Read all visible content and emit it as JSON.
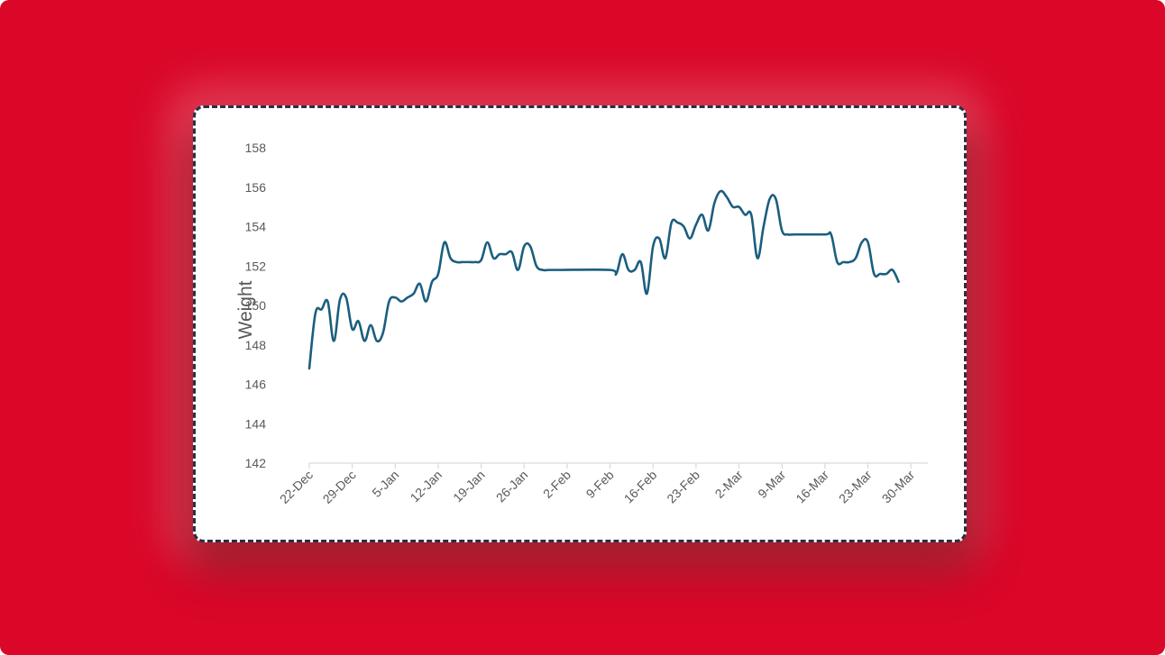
{
  "colors": {
    "background": "#DA0729",
    "card": "#FFFFFF",
    "card_border": "#2A2F44",
    "line": "#1B5E7E",
    "axis": "#D9D9D9",
    "text": "#595959"
  },
  "chart_data": {
    "type": "line",
    "title": "",
    "xlabel": "",
    "ylabel": "Weight",
    "ylim": [
      142,
      158
    ],
    "y_ticks": [
      "142",
      "144",
      "146",
      "148",
      "150",
      "152",
      "154",
      "156",
      "158"
    ],
    "xlim": [
      "2023-12-22",
      "2024-03-30"
    ],
    "x_ticks": [
      "22-Dec",
      "29-Dec",
      "5-Jan",
      "12-Jan",
      "19-Jan",
      "26-Jan",
      "2-Feb",
      "9-Feb",
      "16-Feb",
      "23-Feb",
      "2-Mar",
      "9-Mar",
      "16-Mar",
      "23-Mar",
      "30-Mar"
    ],
    "grid": false,
    "legend": "none",
    "series": [
      {
        "color": "#1B5E7E",
        "x": [
          "2023-12-22",
          "2023-12-23",
          "2023-12-24",
          "2023-12-25",
          "2023-12-26",
          "2023-12-27",
          "2023-12-28",
          "2023-12-29",
          "2023-12-30",
          "2023-12-31",
          "2024-01-01",
          "2024-01-02",
          "2024-01-03",
          "2024-01-04",
          "2024-01-05",
          "2024-01-06",
          "2024-01-07",
          "2024-01-08",
          "2024-01-09",
          "2024-01-10",
          "2024-01-11",
          "2024-01-12",
          "2024-01-13",
          "2024-01-14",
          "2024-01-15",
          "2024-01-16",
          "2024-01-17",
          "2024-01-18",
          "2024-01-19",
          "2024-01-20",
          "2024-01-21",
          "2024-01-22",
          "2024-01-23",
          "2024-01-24",
          "2024-01-25",
          "2024-01-26",
          "2024-01-27",
          "2024-01-28",
          "2024-01-29",
          "2024-01-30",
          "2024-01-31",
          "2024-02-01",
          "2024-02-09",
          "2024-02-10",
          "2024-02-11",
          "2024-02-12",
          "2024-02-13",
          "2024-02-14",
          "2024-02-15",
          "2024-02-16",
          "2024-02-17",
          "2024-02-18",
          "2024-02-19",
          "2024-02-20",
          "2024-02-21",
          "2024-02-22",
          "2024-02-23",
          "2024-02-24",
          "2024-02-25",
          "2024-02-26",
          "2024-02-27",
          "2024-02-28",
          "2024-02-29",
          "2024-03-01",
          "2024-03-02",
          "2024-03-03",
          "2024-03-04",
          "2024-03-05",
          "2024-03-06",
          "2024-03-07",
          "2024-03-08",
          "2024-03-09",
          "2024-03-10",
          "2024-03-15",
          "2024-03-16",
          "2024-03-17",
          "2024-03-18",
          "2024-03-19",
          "2024-03-20",
          "2024-03-21",
          "2024-03-22",
          "2024-03-23",
          "2024-03-24",
          "2024-03-25",
          "2024-03-26",
          "2024-03-27"
        ],
        "y": [
          146.8,
          149.6,
          149.8,
          150.2,
          148.2,
          150.3,
          150.4,
          148.8,
          149.2,
          148.2,
          149.0,
          148.2,
          148.6,
          150.2,
          150.4,
          150.2,
          150.4,
          150.6,
          151.1,
          150.2,
          151.2,
          151.6,
          153.2,
          152.4,
          152.2,
          152.2,
          152.2,
          152.2,
          152.3,
          153.2,
          152.4,
          152.6,
          152.6,
          152.7,
          151.8,
          153.0,
          153.0,
          152.0,
          151.8,
          151.8,
          151.8,
          151.8,
          151.8,
          151.6,
          152.6,
          151.8,
          151.8,
          152.2,
          150.6,
          153.0,
          153.4,
          152.4,
          154.2,
          154.2,
          154.0,
          153.4,
          154.1,
          154.6,
          153.8,
          155.2,
          155.8,
          155.5,
          155.0,
          155.0,
          154.6,
          154.6,
          152.4,
          154.0,
          155.4,
          155.4,
          153.8,
          153.6,
          153.6,
          153.6,
          153.6,
          152.2,
          152.2,
          152.2,
          152.4,
          153.2,
          153.2,
          151.6,
          151.6,
          151.6,
          151.8,
          151.2
        ]
      }
    ]
  }
}
